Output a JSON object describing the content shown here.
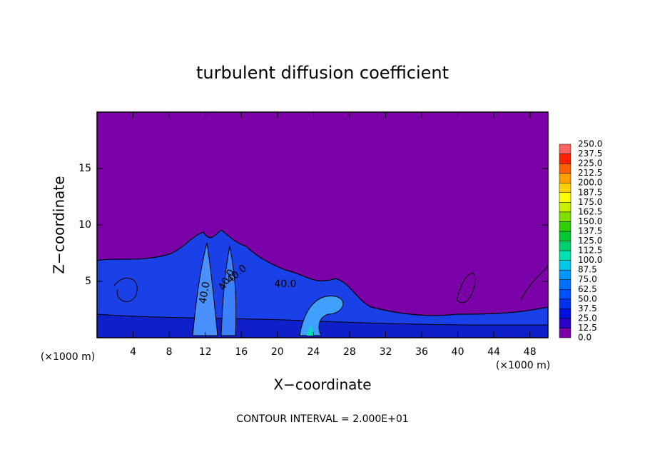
{
  "chart_data": {
    "type": "contour",
    "title": "turbulent diffusion coefficient",
    "x_label": "X−coordinate",
    "y_label": "Z−coordinate",
    "x_unit_left": "(×1000 m)",
    "x_unit_right": "(×1000 m)",
    "footnote": "CONTOUR INTERVAL = 2.000E+01",
    "contour_labels": [
      "40.0",
      "40.0",
      "40.0",
      "40.0"
    ],
    "xlim": [
      0,
      50
    ],
    "xticks": [
      4,
      8,
      12,
      16,
      20,
      24,
      28,
      32,
      36,
      40,
      44,
      48
    ],
    "ylim": [
      0,
      20
    ],
    "yticks": [
      5,
      10,
      15
    ],
    "background_color": "#7b00a8",
    "colorbar": {
      "levels": [
        {
          "value": 0,
          "label": "0.0"
        },
        {
          "value": 12.5,
          "label": "12.5"
        },
        {
          "value": 25,
          "label": "25.0"
        },
        {
          "value": 37.5,
          "label": "37.5"
        },
        {
          "value": 50,
          "label": "50.0"
        },
        {
          "value": 62.5,
          "label": "62.5"
        },
        {
          "value": 75,
          "label": "75.0"
        },
        {
          "value": 87.5,
          "label": "87.5"
        },
        {
          "value": 100,
          "label": "100.0"
        },
        {
          "value": 112.5,
          "label": "112.5"
        },
        {
          "value": 125,
          "label": "125.0"
        },
        {
          "value": 137.5,
          "label": "137.5"
        },
        {
          "value": 150,
          "label": "150.0"
        },
        {
          "value": 162.5,
          "label": "162.5"
        },
        {
          "value": 175,
          "label": "175.0"
        },
        {
          "value": 187.5,
          "label": "187.5"
        },
        {
          "value": 200,
          "label": "200.0"
        },
        {
          "value": 212.5,
          "label": "212.5"
        },
        {
          "value": 225,
          "label": "225.0"
        },
        {
          "value": 237.5,
          "label": "237.5"
        },
        {
          "value": 250,
          "label": "250.0"
        }
      ],
      "colors": [
        "#7b00a8",
        "#2a00c8",
        "#0010e0",
        "#0030f0",
        "#0050ff",
        "#0070ff",
        "#0098ff",
        "#00c8e8",
        "#00e0b0",
        "#00d070",
        "#00c830",
        "#30d000",
        "#80e000",
        "#c8f000",
        "#ffff00",
        "#ffd000",
        "#ffa000",
        "#ff6000",
        "#ff2000",
        "#ff6060"
      ]
    }
  }
}
